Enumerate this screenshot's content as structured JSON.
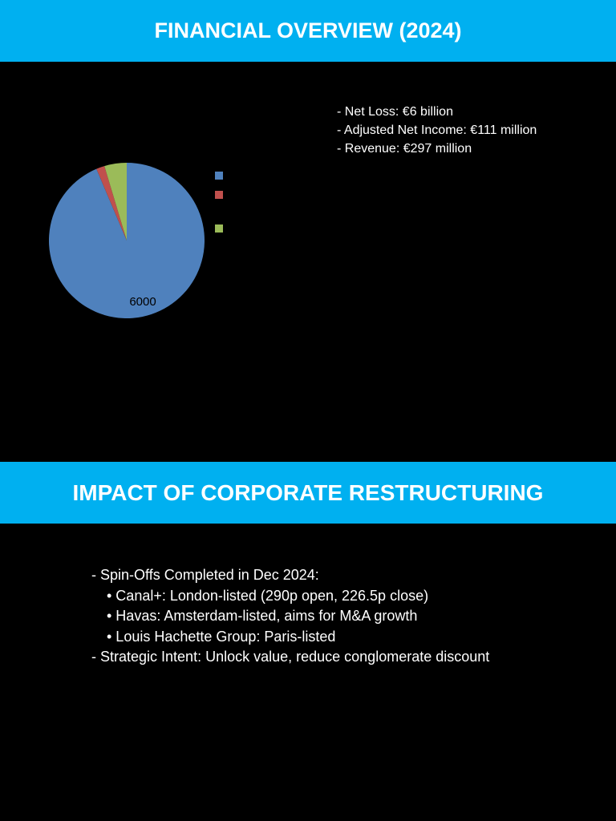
{
  "slide1": {
    "title": "FINANCIAL OVERVIEW (2024)",
    "stats": [
      "- Net Loss: €6 billion",
      "- Adjusted Net Income: €111 million",
      "- Revenue: €297 million"
    ]
  },
  "chart_data": {
    "type": "pie",
    "values": [
      6000,
      111,
      297
    ],
    "colors": [
      "#4f81bd",
      "#c0504d",
      "#9bbb59"
    ],
    "data_labels": [
      "6000",
      "",
      ""
    ],
    "legend_position": "right",
    "title": ""
  },
  "slide2": {
    "title": "IMPACT OF CORPORATE RESTRUCTURING",
    "items": [
      {
        "text": "- Spin-Offs Completed in Dec 2024:",
        "level": 0
      },
      {
        "text": "• Canal+: London-listed (290p open, 226.5p close)",
        "level": 1
      },
      {
        "text": "• Havas: Amsterdam-listed, aims for M&A growth",
        "level": 1
      },
      {
        "text": "• Louis Hachette Group: Paris-listed",
        "level": 1
      },
      {
        "text": "- Strategic Intent: Unlock value, reduce conglomerate discount",
        "level": 0
      }
    ]
  }
}
